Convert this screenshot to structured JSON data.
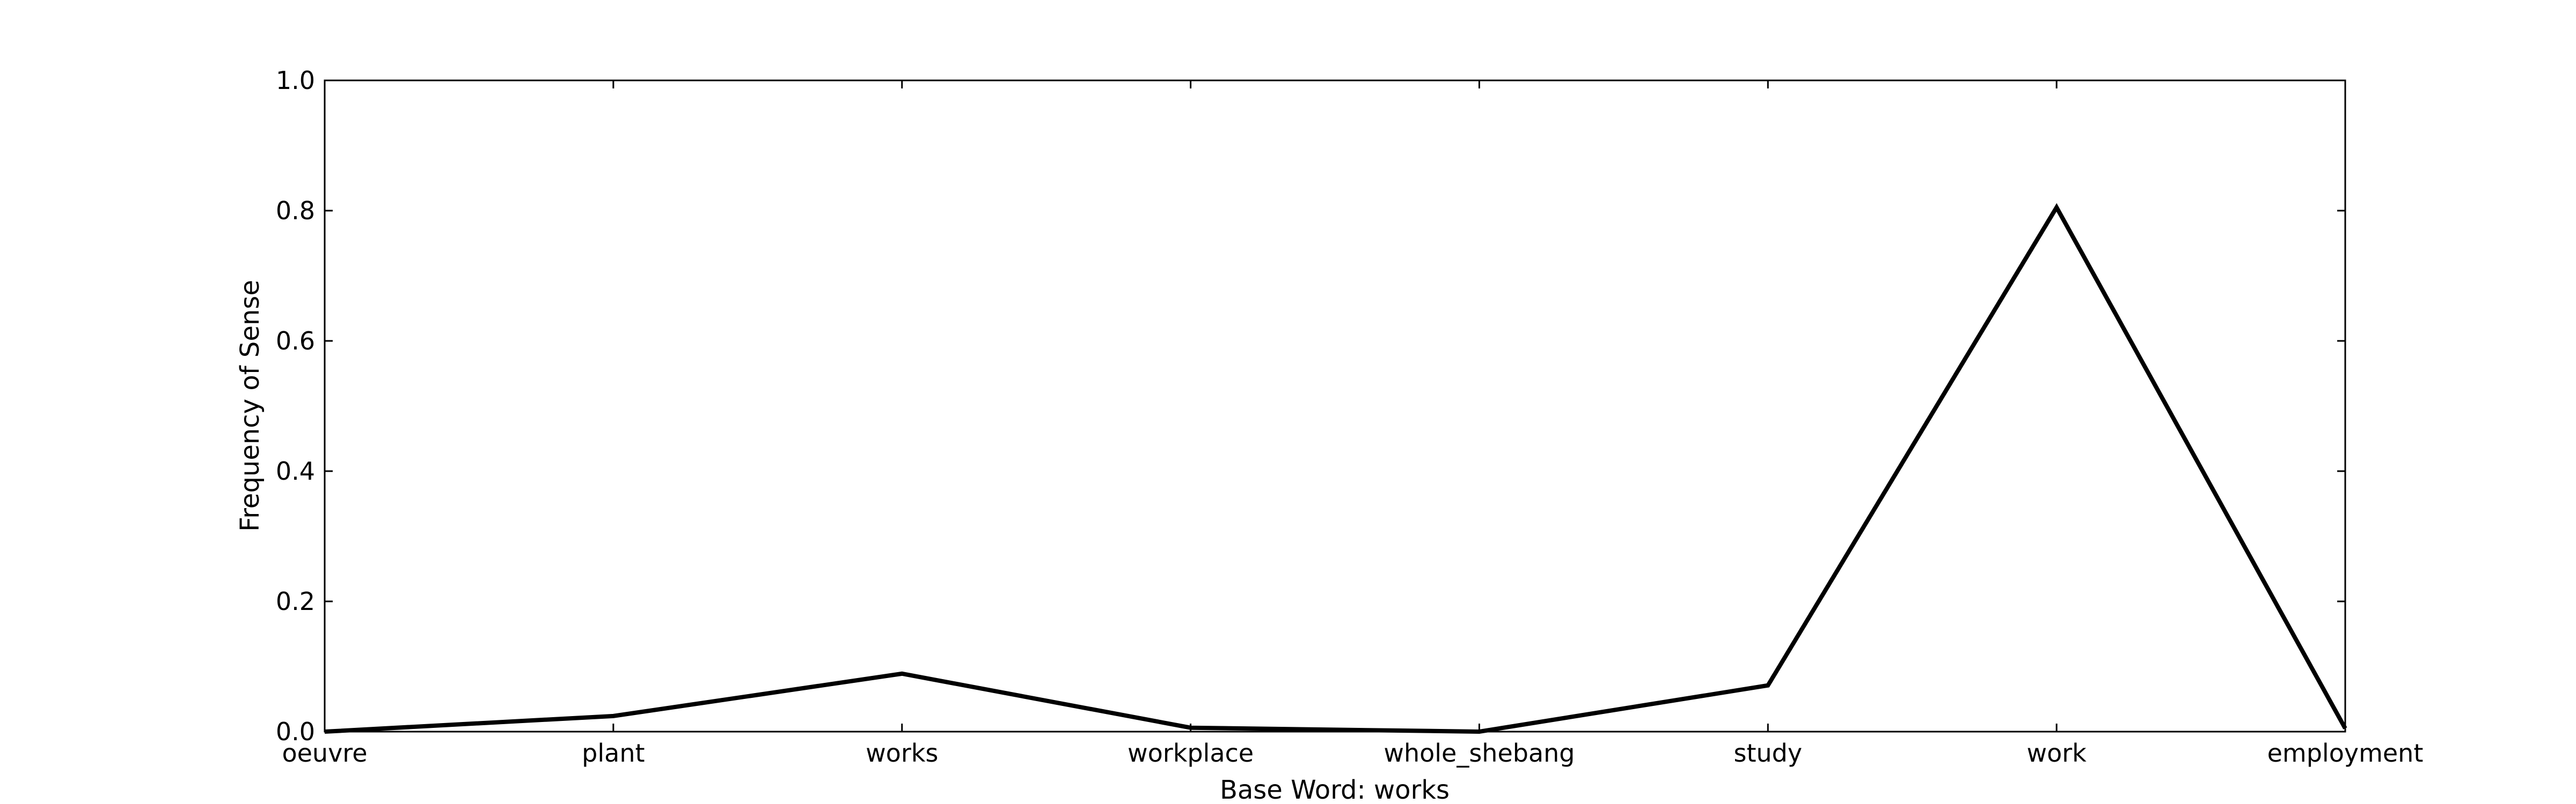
{
  "chart_data": {
    "type": "line",
    "title": "",
    "xlabel": "Base Word: works",
    "ylabel": "Frequency of Sense",
    "categories": [
      "oeuvre",
      "plant",
      "works",
      "workplace",
      "whole_shebang",
      "study",
      "work",
      "employment"
    ],
    "series": [
      {
        "values": [
          0.0,
          0.024,
          0.089,
          0.006,
          0.0,
          0.071,
          0.805,
          0.005
        ]
      }
    ],
    "ylim": [
      0.0,
      1.0
    ],
    "yticks": [
      "0.0",
      "0.2",
      "0.4",
      "0.6",
      "0.8",
      "1.0"
    ],
    "grid": false,
    "legend": false,
    "line_color": "#000000"
  }
}
